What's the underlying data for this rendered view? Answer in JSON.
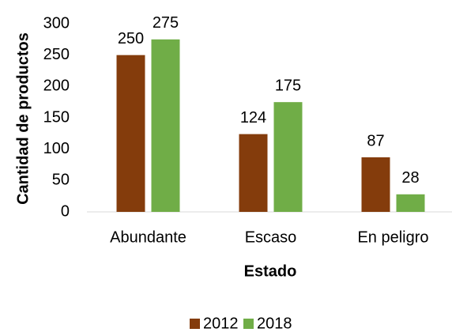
{
  "chart_data": {
    "type": "bar",
    "categories": [
      "Abundante",
      "Escaso",
      "En peligro"
    ],
    "series": [
      {
        "name": "2012",
        "color": "#843c0c",
        "values": [
          250,
          124,
          87
        ]
      },
      {
        "name": "2018",
        "color": "#70ad47",
        "values": [
          275,
          175,
          28
        ]
      }
    ],
    "xlabel": "Estado",
    "ylabel": "Cantidad de productos",
    "ylim": [
      0,
      300
    ],
    "yticks": [
      0,
      50,
      100,
      150,
      200,
      250,
      300
    ],
    "grid": false,
    "legend": "bottom"
  }
}
